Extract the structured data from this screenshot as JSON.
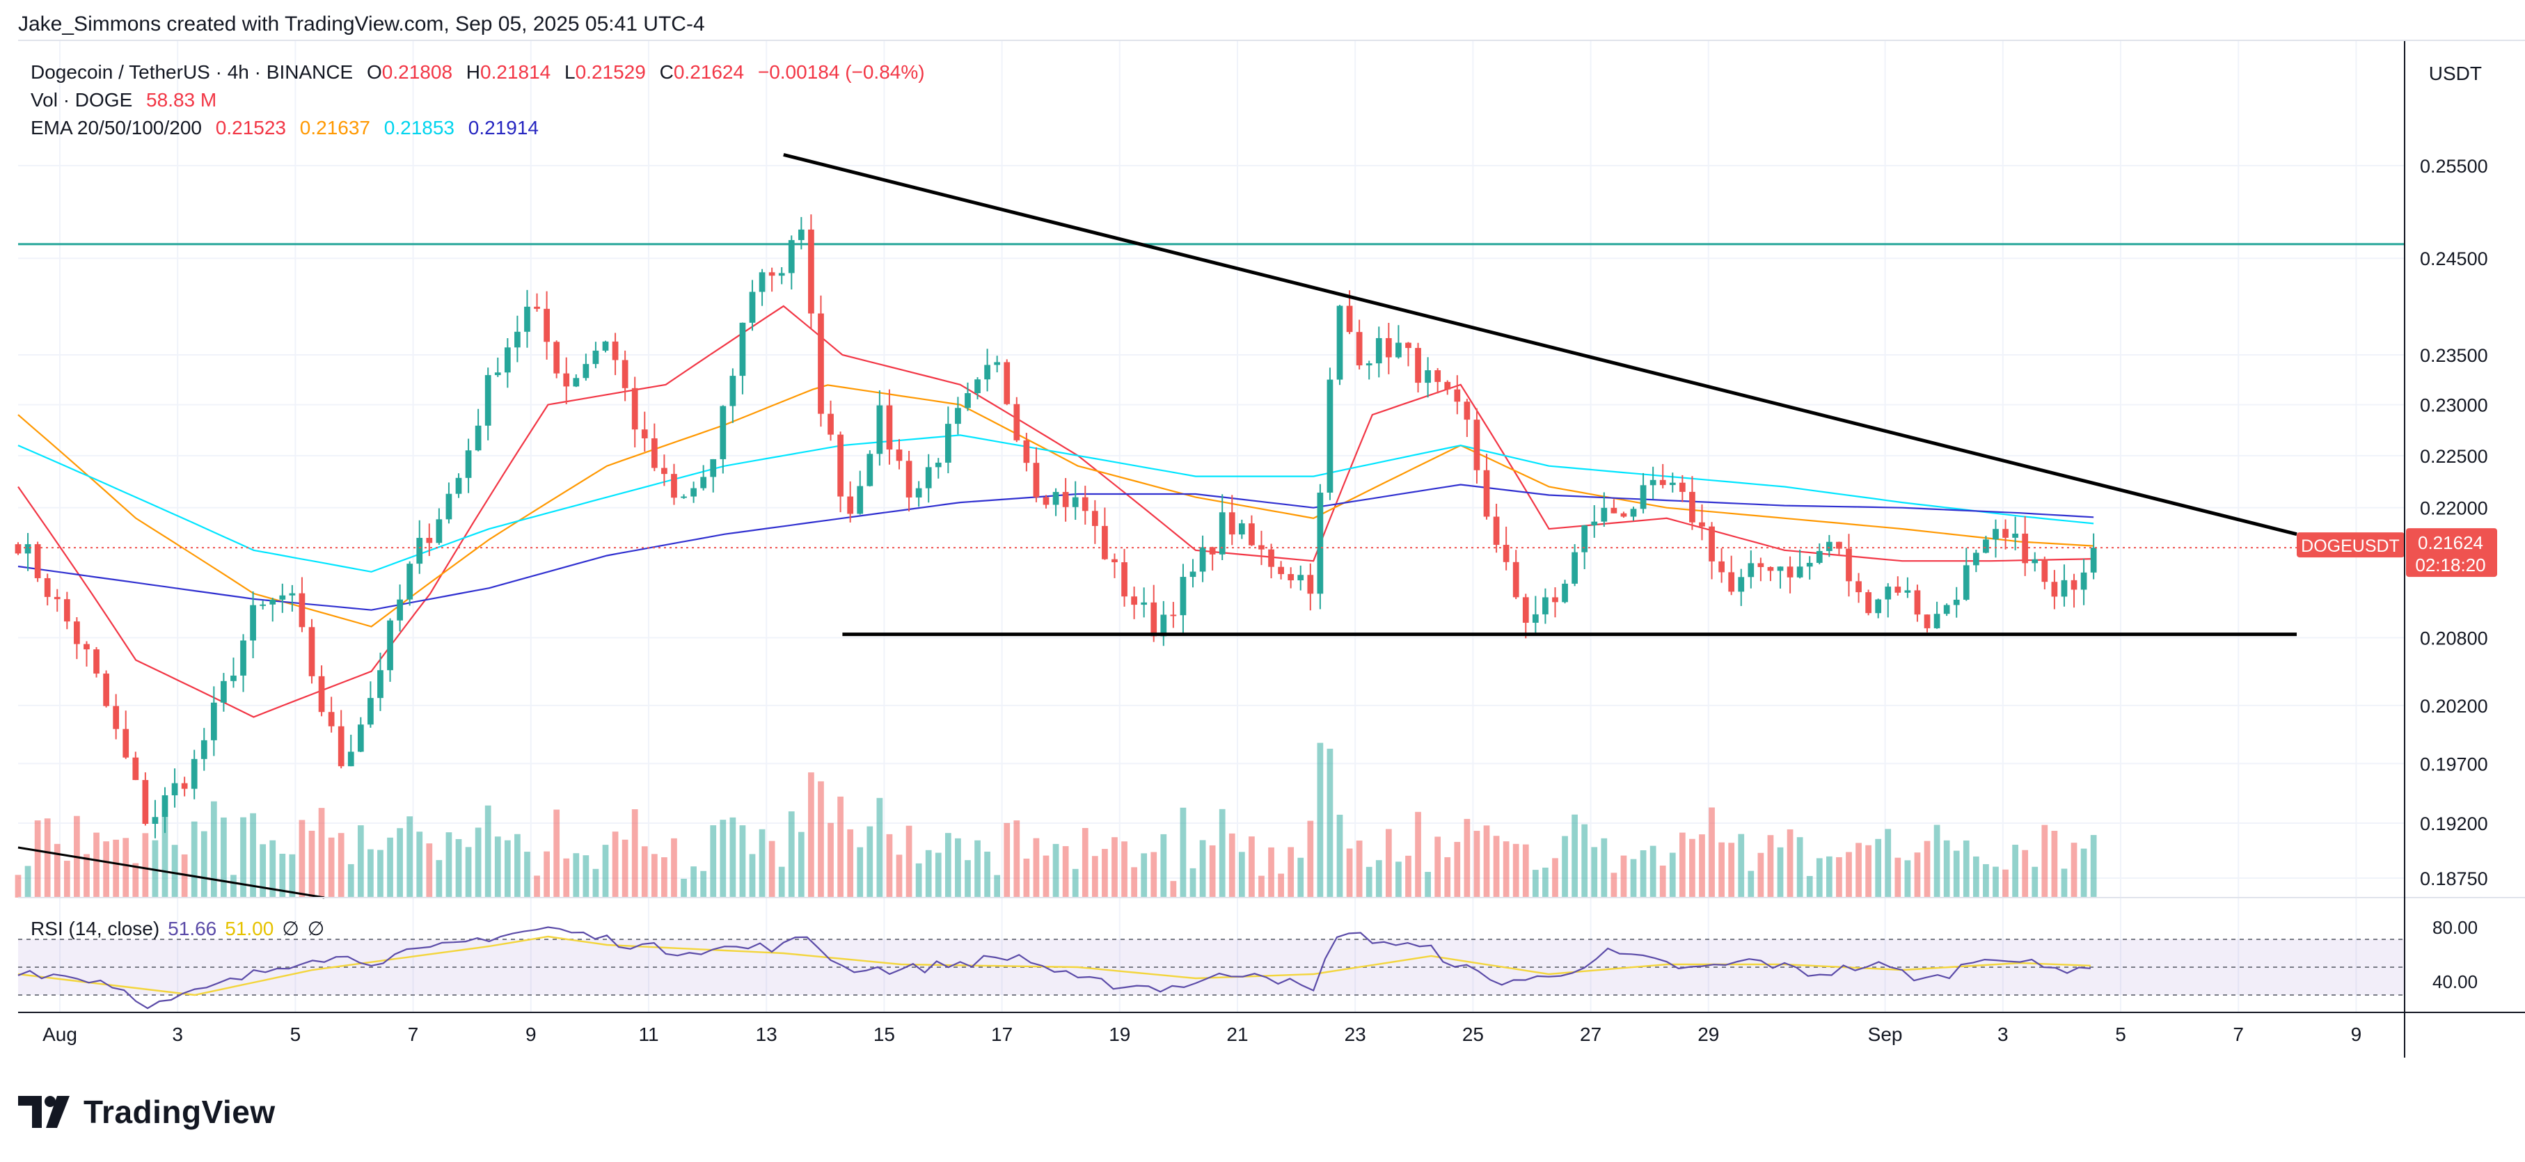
{
  "header": {
    "creator": "Jake_Simmons created with TradingView.com, Sep 05, 2025 05:41 UTC-4",
    "symbol_line": "Dogecoin / TetherUS · 4h · BINANCE",
    "ohlc": {
      "o_label": "O",
      "o": "0.21808",
      "h_label": "H",
      "h": "0.21814",
      "l_label": "L",
      "l": "0.21529",
      "c_label": "C",
      "c": "0.21624",
      "change": "−0.00184 (−0.84%)"
    },
    "vol_label": "Vol · DOGE",
    "vol_value": "58.83 M",
    "ema_label": "EMA 20/50/100/200",
    "ema_values": [
      "0.21523",
      "0.21637",
      "0.21853",
      "0.21914"
    ]
  },
  "currency": "USDT",
  "badge": {
    "symbol": "DOGEUSDT",
    "price": "0.21624",
    "countdown": "02:18:20"
  },
  "rsi": {
    "label": "RSI (14, close)",
    "value": "51.66",
    "ma_value": "51.00",
    "icons": [
      "∅",
      "∅"
    ],
    "upper": "80.00",
    "lower": "40.00"
  },
  "brand": "TradingView",
  "colors": {
    "up": "#26a69a",
    "down": "#ef5350",
    "ema20": "#f23645",
    "ema50": "#ff9800",
    "ema100": "#00e5ff",
    "ema200": "#3030d0",
    "resistance": "#26a69a",
    "rsi_line": "#5b4ba8",
    "rsi_ma": "#f3d53c"
  },
  "chart_data": {
    "type": "candlestick",
    "title": "Dogecoin / TetherUS · 4h · BINANCE",
    "y_axis": {
      "ticks": [
        "0.25500",
        "0.24500",
        "0.23500",
        "0.23000",
        "0.22500",
        "0.22000",
        "0.20800",
        "0.20200",
        "0.19700",
        "0.19200",
        "0.18750"
      ],
      "tick_values": [
        0.255,
        0.245,
        0.235,
        0.23,
        0.225,
        0.22,
        0.208,
        0.202,
        0.197,
        0.192,
        0.1875
      ]
    },
    "x_axis": {
      "labels": [
        "Aug",
        "3",
        "5",
        "7",
        "9",
        "11",
        "13",
        "15",
        "17",
        "19",
        "21",
        "23",
        "25",
        "27",
        "29",
        "Sep",
        "3",
        "5",
        "7",
        "9"
      ],
      "day_index": [
        0,
        2,
        4,
        6,
        8,
        10,
        12,
        14,
        16,
        18,
        20,
        22,
        24,
        26,
        28,
        31,
        33,
        35,
        37,
        39
      ]
    },
    "price_range_days": [
      0,
      35.25
    ],
    "key_prices": [
      {
        "day": 0.0,
        "price": 0.217
      },
      {
        "day": 1.2,
        "price": 0.206
      },
      {
        "day": 2.2,
        "price": 0.192
      },
      {
        "day": 3.0,
        "price": 0.197
      },
      {
        "day": 4.0,
        "price": 0.21
      },
      {
        "day": 4.6,
        "price": 0.212
      },
      {
        "day": 5.2,
        "price": 0.201
      },
      {
        "day": 5.5,
        "price": 0.197
      },
      {
        "day": 6.0,
        "price": 0.203
      },
      {
        "day": 6.7,
        "price": 0.215
      },
      {
        "day": 7.5,
        "price": 0.223
      },
      {
        "day": 8.1,
        "price": 0.234
      },
      {
        "day": 8.7,
        "price": 0.24
      },
      {
        "day": 9.3,
        "price": 0.232
      },
      {
        "day": 10.0,
        "price": 0.237
      },
      {
        "day": 10.6,
        "price": 0.226
      },
      {
        "day": 11.2,
        "price": 0.22
      },
      {
        "day": 11.8,
        "price": 0.224
      },
      {
        "day": 12.5,
        "price": 0.243
      },
      {
        "day": 13.0,
        "price": 0.244
      },
      {
        "day": 13.25,
        "price": 0.25
      },
      {
        "day": 13.6,
        "price": 0.231
      },
      {
        "day": 14.1,
        "price": 0.219
      },
      {
        "day": 14.6,
        "price": 0.229
      },
      {
        "day": 15.2,
        "price": 0.221
      },
      {
        "day": 16.0,
        "price": 0.229
      },
      {
        "day": 16.6,
        "price": 0.234
      },
      {
        "day": 17.3,
        "price": 0.222
      },
      {
        "day": 18.1,
        "price": 0.22
      },
      {
        "day": 18.7,
        "price": 0.213
      },
      {
        "day": 19.3,
        "price": 0.209
      },
      {
        "day": 20.0,
        "price": 0.214
      },
      {
        "day": 20.5,
        "price": 0.219
      },
      {
        "day": 21.0,
        "price": 0.216
      },
      {
        "day": 21.6,
        "price": 0.214
      },
      {
        "day": 22.0,
        "price": 0.213
      },
      {
        "day": 22.4,
        "price": 0.24
      },
      {
        "day": 22.8,
        "price": 0.235
      },
      {
        "day": 23.4,
        "price": 0.236
      },
      {
        "day": 24.0,
        "price": 0.232
      },
      {
        "day": 24.6,
        "price": 0.228
      },
      {
        "day": 25.1,
        "price": 0.216
      },
      {
        "day": 25.6,
        "price": 0.21
      },
      {
        "day": 26.1,
        "price": 0.211
      },
      {
        "day": 26.7,
        "price": 0.219
      },
      {
        "day": 27.3,
        "price": 0.22
      },
      {
        "day": 28.0,
        "price": 0.222
      },
      {
        "day": 28.5,
        "price": 0.219
      },
      {
        "day": 29.1,
        "price": 0.212
      },
      {
        "day": 29.7,
        "price": 0.215
      },
      {
        "day": 30.3,
        "price": 0.214
      },
      {
        "day": 30.8,
        "price": 0.217
      },
      {
        "day": 31.3,
        "price": 0.211
      },
      {
        "day": 31.9,
        "price": 0.213
      },
      {
        "day": 32.5,
        "price": 0.209
      },
      {
        "day": 33.1,
        "price": 0.214
      },
      {
        "day": 33.6,
        "price": 0.217
      },
      {
        "day": 34.1,
        "price": 0.216
      },
      {
        "day": 34.6,
        "price": 0.211
      },
      {
        "day": 35.25,
        "price": 0.2162
      }
    ],
    "ema_series": [
      {
        "name": "EMA 20",
        "points": [
          [
            0,
            0.222
          ],
          [
            2,
            0.206
          ],
          [
            4,
            0.201
          ],
          [
            6,
            0.205
          ],
          [
            7,
            0.212
          ],
          [
            9,
            0.23
          ],
          [
            11,
            0.232
          ],
          [
            13,
            0.24
          ],
          [
            14,
            0.235
          ],
          [
            16,
            0.232
          ],
          [
            18,
            0.225
          ],
          [
            20,
            0.216
          ],
          [
            22,
            0.215
          ],
          [
            23,
            0.229
          ],
          [
            24.5,
            0.232
          ],
          [
            26,
            0.218
          ],
          [
            28,
            0.219
          ],
          [
            30,
            0.216
          ],
          [
            32,
            0.215
          ],
          [
            33.5,
            0.215
          ],
          [
            35.25,
            0.2152
          ]
        ]
      },
      {
        "name": "EMA 50",
        "points": [
          [
            0,
            0.229
          ],
          [
            2,
            0.219
          ],
          [
            4,
            0.212
          ],
          [
            6,
            0.209
          ],
          [
            8,
            0.217
          ],
          [
            10,
            0.224
          ],
          [
            12,
            0.228
          ],
          [
            13.7,
            0.232
          ],
          [
            16,
            0.23
          ],
          [
            18,
            0.224
          ],
          [
            20,
            0.221
          ],
          [
            22,
            0.219
          ],
          [
            24.5,
            0.226
          ],
          [
            26,
            0.222
          ],
          [
            28,
            0.22
          ],
          [
            30,
            0.219
          ],
          [
            32,
            0.218
          ],
          [
            34,
            0.2168
          ],
          [
            35.25,
            0.2164
          ]
        ]
      },
      {
        "name": "EMA 100",
        "points": [
          [
            0,
            0.226
          ],
          [
            2,
            0.221
          ],
          [
            4,
            0.216
          ],
          [
            6,
            0.214
          ],
          [
            8,
            0.218
          ],
          [
            10,
            0.221
          ],
          [
            12,
            0.224
          ],
          [
            14,
            0.226
          ],
          [
            16,
            0.227
          ],
          [
            18,
            0.225
          ],
          [
            20,
            0.223
          ],
          [
            22,
            0.223
          ],
          [
            24.5,
            0.226
          ],
          [
            26,
            0.224
          ],
          [
            28,
            0.223
          ],
          [
            30,
            0.222
          ],
          [
            32,
            0.2205
          ],
          [
            34,
            0.2192
          ],
          [
            35.25,
            0.2185
          ]
        ]
      },
      {
        "name": "EMA 200",
        "points": [
          [
            0,
            0.2145
          ],
          [
            4,
            0.2115
          ],
          [
            6,
            0.2105
          ],
          [
            8,
            0.2125
          ],
          [
            10,
            0.2155
          ],
          [
            12,
            0.2175
          ],
          [
            14,
            0.219
          ],
          [
            16,
            0.2205
          ],
          [
            18,
            0.2213
          ],
          [
            20,
            0.2213
          ],
          [
            22,
            0.22
          ],
          [
            24.5,
            0.2222
          ],
          [
            26,
            0.2212
          ],
          [
            28,
            0.2207
          ],
          [
            30,
            0.2202
          ],
          [
            32,
            0.22
          ],
          [
            34,
            0.2195
          ],
          [
            35.25,
            0.2191
          ]
        ]
      }
    ],
    "resistance_price": 0.2465,
    "trendline": {
      "from": {
        "day": 13.0,
        "price": 0.2562
      },
      "to": {
        "day": 38.7,
        "price": 0.2175
      }
    },
    "support": {
      "from_day": 14.0,
      "to_day": 38.7,
      "price": 0.2083
    },
    "rsi_range": [
      20,
      95
    ],
    "rsi_levels": [
      70,
      50,
      30
    ],
    "rsi_key": [
      [
        0,
        48
      ],
      [
        1.5,
        40
      ],
      [
        2.3,
        22
      ],
      [
        3.5,
        38
      ],
      [
        5,
        58
      ],
      [
        6,
        55
      ],
      [
        7,
        62
      ],
      [
        8,
        72
      ],
      [
        9,
        78
      ],
      [
        10,
        70
      ],
      [
        11,
        62
      ],
      [
        13,
        65
      ],
      [
        13.4,
        72
      ],
      [
        14,
        50
      ],
      [
        15,
        48
      ],
      [
        17,
        58
      ],
      [
        18,
        40
      ],
      [
        19.5,
        35
      ],
      [
        21,
        48
      ],
      [
        22,
        32
      ],
      [
        22.4,
        75
      ],
      [
        24,
        62
      ],
      [
        25,
        40
      ],
      [
        26,
        42
      ],
      [
        27,
        60
      ],
      [
        28.5,
        48
      ],
      [
        29.5,
        55
      ],
      [
        30.5,
        45
      ],
      [
        31.5,
        52
      ],
      [
        32.5,
        40
      ],
      [
        33.5,
        60
      ],
      [
        34.5,
        48
      ],
      [
        35.25,
        51.66
      ]
    ],
    "rsi_ma_key": [
      [
        0,
        45
      ],
      [
        3,
        30
      ],
      [
        5,
        48
      ],
      [
        8,
        65
      ],
      [
        9,
        72
      ],
      [
        10,
        66
      ],
      [
        13,
        60
      ],
      [
        15,
        52
      ],
      [
        18,
        50
      ],
      [
        20,
        42
      ],
      [
        22,
        45
      ],
      [
        24,
        58
      ],
      [
        26,
        45
      ],
      [
        28,
        52
      ],
      [
        30,
        52
      ],
      [
        32,
        48
      ],
      [
        34,
        53
      ],
      [
        35.25,
        51
      ]
    ]
  }
}
